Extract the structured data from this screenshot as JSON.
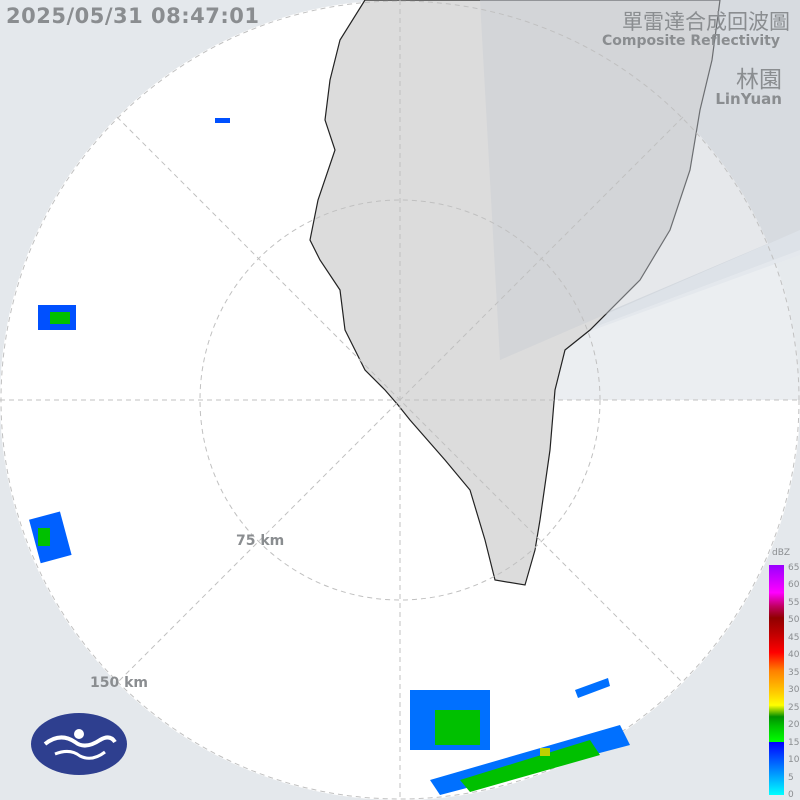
{
  "timestamp": "2025/05/31 08:47:01",
  "title_zh": "單雷達合成回波圖",
  "title_en": "Composite Reflectivity",
  "site_zh": "林園",
  "site_en": "LinYuan",
  "rings": [
    {
      "label": "75 km"
    },
    {
      "label": "150 km"
    }
  ],
  "legend": {
    "unit": "dBZ",
    "ticks": [
      "65",
      "60",
      "55",
      "50",
      "45",
      "40",
      "35",
      "30",
      "25",
      "20",
      "15",
      "10",
      "5",
      "0"
    ]
  },
  "colors": {
    "background": "#e4e8ec",
    "coverage": "#ffffff",
    "land": "#dcdcdc",
    "text": "#8a8d90",
    "logo": "#2e3f8f"
  }
}
